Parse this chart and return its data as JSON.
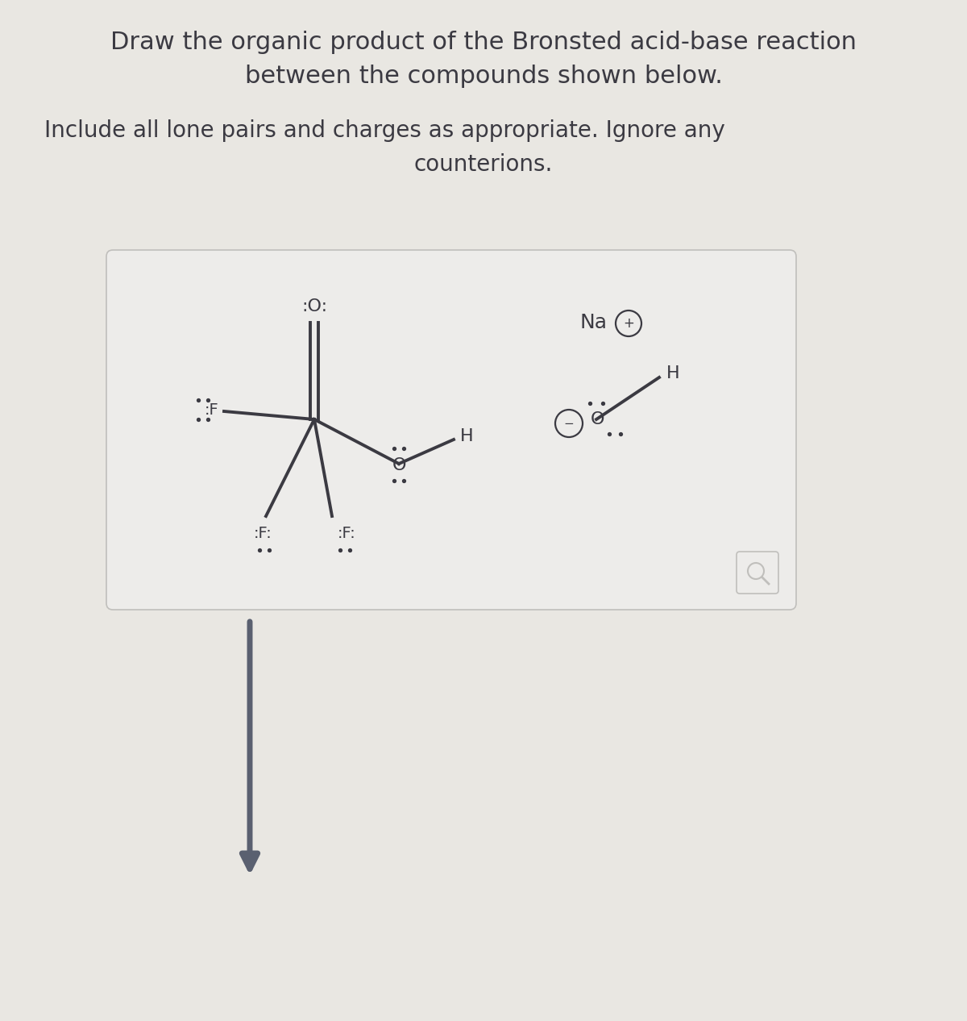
{
  "title_line1": "Draw the organic product of the Bronsted acid-base reaction",
  "title_line2": "between the compounds shown below.",
  "subtitle_line1": "Include all lone pairs and charges as appropriate. Ignore any",
  "subtitle_line2": "counterions.",
  "bg_color": "#e9e7e2",
  "box_color": "#edecea",
  "box_edge_color": "#c0bfbc",
  "text_color": "#3b3a42",
  "bond_color": "#3b3a42",
  "arrow_color": "#5a6070",
  "font_family": "DejaVu Sans",
  "title_fontsize": 22,
  "subtitle_fontsize": 20,
  "mol_fontsize": 16,
  "lp_fontsize": 14
}
